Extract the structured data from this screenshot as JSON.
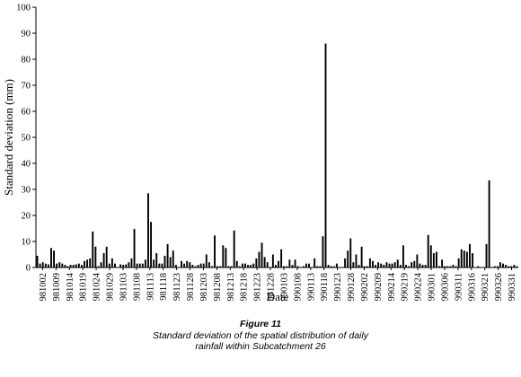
{
  "figure": {
    "label": "Figure 11",
    "caption_line1": "Standard deviation of the spatial distribution of daily",
    "caption_line2": "rainfall within Subcatchment 26"
  },
  "chart_data": {
    "type": "bar",
    "ylabel": "Standard deviation (mm)",
    "xlabel": "Date",
    "ylim": [
      0,
      100
    ],
    "yticks": [
      0,
      10,
      20,
      30,
      40,
      50,
      60,
      70,
      80,
      90,
      100
    ],
    "grid": false,
    "legend": "none",
    "bar_color": "#000000",
    "x_tick_labels": [
      "981002",
      "981009",
      "981014",
      "981019",
      "981024",
      "981029",
      "981103",
      "981108",
      "981113",
      "981118",
      "981123",
      "981128",
      "981203",
      "981208",
      "981213",
      "981218",
      "981223",
      "981228",
      "990103",
      "990108",
      "990113",
      "990118",
      "990123",
      "990128",
      "990202",
      "990209",
      "990214",
      "990219",
      "990224",
      "990301",
      "990306",
      "990311",
      "990316",
      "990321",
      "990326",
      "990331"
    ],
    "values": [
      4.5,
      1.5,
      2,
      1.5,
      1.2,
      7.5,
      6.5,
      1.5,
      2,
      1.5,
      1,
      0.5,
      1,
      1,
      1.2,
      1.5,
      1,
      2.5,
      3,
      3.5,
      13.8,
      8,
      0.5,
      2,
      5.5,
      8,
      1.5,
      3.5,
      1.5,
      0,
      1.2,
      1,
      1.2,
      2,
      3.5,
      14.8,
      1.5,
      1.5,
      1.5,
      3,
      28.5,
      17.5,
      3,
      5.5,
      1.5,
      1.5,
      4.5,
      9,
      4,
      6.5,
      1,
      0,
      2.5,
      1.5,
      2.5,
      2,
      1,
      0.5,
      1,
      1.5,
      1.5,
      5,
      2,
      0.5,
      12.3,
      0.5,
      0.5,
      8.5,
      7.5,
      0.5,
      0.5,
      14.2,
      2.5,
      0.5,
      1.5,
      1.5,
      1,
      1,
      1.5,
      3.5,
      6,
      9.5,
      4,
      2,
      0,
      5,
      1,
      2.5,
      7,
      0.5,
      0.5,
      3,
      1,
      3,
      0.5,
      0,
      0.5,
      1.5,
      1.5,
      0,
      3.5,
      0.5,
      0.5,
      12,
      86,
      1,
      0.5,
      0.5,
      1.5,
      0,
      0,
      3.5,
      6.5,
      11.2,
      2,
      5,
      1,
      8,
      0.5,
      0.5,
      3.5,
      2.5,
      1,
      2,
      1.5,
      1,
      2,
      1.5,
      1.5,
      2,
      3,
      1,
      8.5,
      1,
      0.5,
      2,
      2.5,
      5,
      1.5,
      1,
      1,
      12.5,
      8.5,
      5.5,
      6,
      0.5,
      3,
      0.5,
      0.5,
      0.5,
      1,
      0.5,
      3.5,
      7,
      6.5,
      6,
      9,
      5.5,
      0,
      0.5,
      0,
      0,
      9,
      33.5,
      0,
      0.5,
      0.5,
      2,
      1.5,
      1,
      0.5,
      0.5,
      1,
      0.5
    ]
  }
}
